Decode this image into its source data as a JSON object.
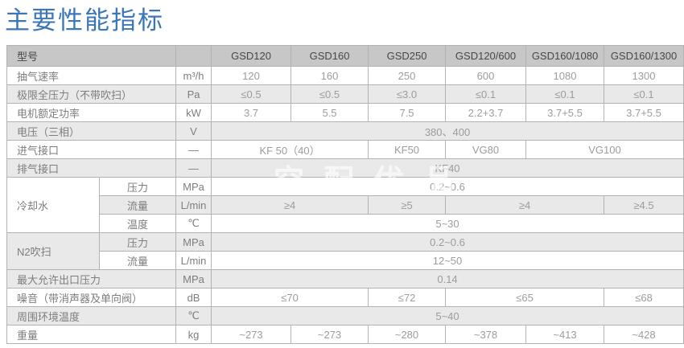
{
  "page_title": "主要性能指标",
  "watermark": "空配优品",
  "colors": {
    "title_blue": "#3b76b8",
    "header_bg": "#c7c7c7",
    "shaded_row_bg": "#e9e9e9",
    "border": "#b2b2b2"
  },
  "table": {
    "header": [
      {
        "t": "型号",
        "c": 2,
        "k": "label"
      },
      {
        "t": "",
        "k": "unit"
      },
      {
        "t": "GSD120"
      },
      {
        "t": "GSD160"
      },
      {
        "t": "GSD250"
      },
      {
        "t": "GSD120/600"
      },
      {
        "t": "GSD160/1080"
      },
      {
        "t": "GSD160/1300"
      }
    ],
    "rows": [
      [
        {
          "t": "抽气速率",
          "c": 2,
          "k": "label"
        },
        {
          "t": "m³/h",
          "k": "unit"
        },
        {
          "t": "120"
        },
        {
          "t": "160"
        },
        {
          "t": "250"
        },
        {
          "t": "600"
        },
        {
          "t": "1080"
        },
        {
          "t": "1300"
        }
      ],
      [
        {
          "t": "极限全压力（不带吹扫）",
          "c": 2,
          "k": "label"
        },
        {
          "t": "Pa",
          "k": "unit"
        },
        {
          "t": "≤0.5"
        },
        {
          "t": "≤0.5"
        },
        {
          "t": "≤3.0"
        },
        {
          "t": "≤0.1"
        },
        {
          "t": "≤0.1"
        },
        {
          "t": "≤0.1"
        }
      ],
      [
        {
          "t": "电机额定功率",
          "c": 2,
          "k": "label"
        },
        {
          "t": "kW",
          "k": "unit"
        },
        {
          "t": "3.7"
        },
        {
          "t": "5.5"
        },
        {
          "t": "7.5"
        },
        {
          "t": "2.2+3.7"
        },
        {
          "t": "3.7+5.5"
        },
        {
          "t": "3.7+5.5"
        }
      ],
      [
        {
          "t": "电压（三相）",
          "c": 2,
          "k": "label"
        },
        {
          "t": "V",
          "k": "unit"
        },
        {
          "t": "380、400",
          "c": 6
        }
      ],
      [
        {
          "t": "进气接口",
          "c": 2,
          "k": "label"
        },
        {
          "t": "—",
          "k": "unit"
        },
        {
          "t": "KF 50（40）",
          "c": 2
        },
        {
          "t": "KF50"
        },
        {
          "t": "VG80"
        },
        {
          "t": "VG100",
          "c": 2
        }
      ],
      [
        {
          "t": "排气接口",
          "c": 2,
          "k": "label"
        },
        {
          "t": "—",
          "k": "unit"
        },
        {
          "t": "KF40",
          "c": 6
        }
      ],
      [
        {
          "t": "冷却水",
          "r": 3,
          "k": "label"
        },
        {
          "t": "压力",
          "k": "sublabel"
        },
        {
          "t": "MPa",
          "k": "unit"
        },
        {
          "t": "0.2~0.6",
          "c": 6
        }
      ],
      [
        {
          "t": "流量",
          "k": "sublabel"
        },
        {
          "t": "L/min",
          "k": "unit"
        },
        {
          "t": "≥4",
          "c": 2
        },
        {
          "t": "≥5"
        },
        {
          "t": "≥4",
          "c": 2
        },
        {
          "t": "≥4.5"
        }
      ],
      [
        {
          "t": "温度",
          "k": "sublabel"
        },
        {
          "t": "℃",
          "k": "unit"
        },
        {
          "t": "5~30",
          "c": 6
        }
      ],
      [
        {
          "t": "N2吹扫",
          "r": 2,
          "k": "label"
        },
        {
          "t": "压力",
          "k": "sublabel"
        },
        {
          "t": "MPa",
          "k": "unit"
        },
        {
          "t": "0.2~0.6",
          "c": 6
        }
      ],
      [
        {
          "t": "流量",
          "k": "sublabel"
        },
        {
          "t": "L/min",
          "k": "unit"
        },
        {
          "t": "12~50",
          "c": 6
        }
      ],
      [
        {
          "t": "最大允许出口压力",
          "c": 2,
          "k": "label"
        },
        {
          "t": "MPa",
          "k": "unit"
        },
        {
          "t": "0.14",
          "c": 6
        }
      ],
      [
        {
          "t": "噪音（带消声器及单向阀）",
          "c": 2,
          "k": "label"
        },
        {
          "t": "dB",
          "k": "unit"
        },
        {
          "t": "≤70",
          "c": 2
        },
        {
          "t": "≤72"
        },
        {
          "t": "≤65",
          "c": 2
        },
        {
          "t": "≤68"
        }
      ],
      [
        {
          "t": "周围环境温度",
          "c": 2,
          "k": "label"
        },
        {
          "t": "℃",
          "k": "unit"
        },
        {
          "t": "5~40",
          "c": 6
        }
      ],
      [
        {
          "t": "重量",
          "c": 2,
          "k": "label"
        },
        {
          "t": "kg",
          "k": "unit"
        },
        {
          "t": "~273"
        },
        {
          "t": "~273"
        },
        {
          "t": "~280"
        },
        {
          "t": "~378"
        },
        {
          "t": "~413"
        },
        {
          "t": "~428"
        }
      ]
    ]
  }
}
